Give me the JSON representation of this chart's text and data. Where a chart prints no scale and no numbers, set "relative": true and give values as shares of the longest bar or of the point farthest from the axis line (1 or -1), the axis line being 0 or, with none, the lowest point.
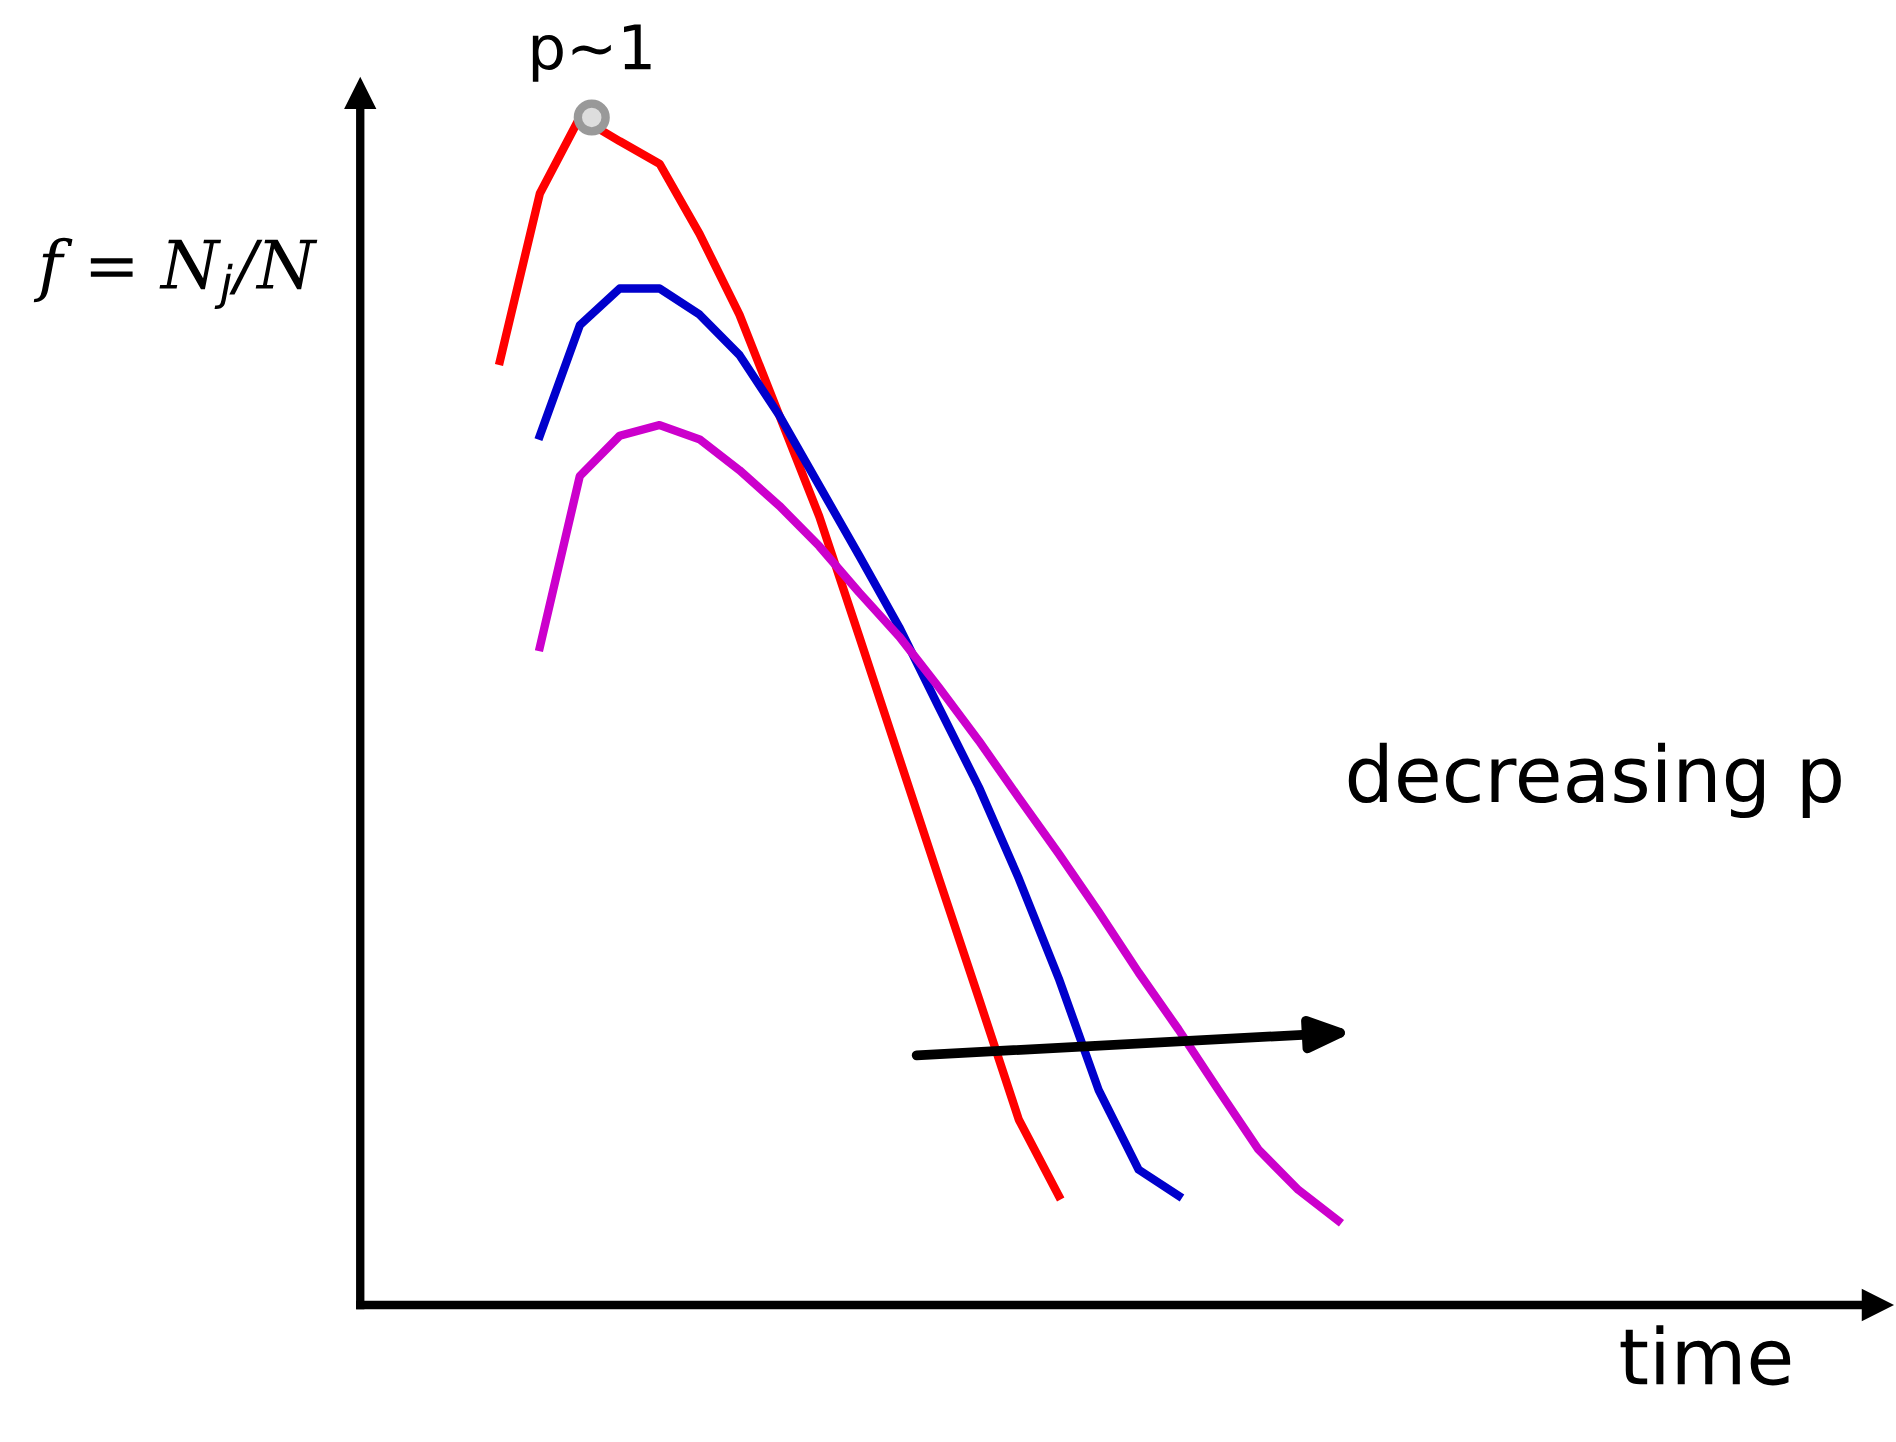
{
  "chart_data": {
    "type": "line",
    "relative": true,
    "ylabel": "f = N$_{j}$/N",
    "xlabel": "time",
    "legend": false,
    "marker": "none",
    "line_style": "solid",
    "categories": [
      null,
      null,
      null,
      null,
      null,
      null,
      null,
      null,
      null,
      null,
      null,
      null,
      null,
      null,
      null,
      null,
      null,
      null,
      null,
      null,
      null,
      null
    ],
    "series": [
      {
        "color": "#ff0000",
        "values": [
          0.795,
          0.936,
          1.0,
          0.98,
          0.961,
          0.902,
          0.834,
          0.749,
          0.664,
          0.563,
          0.461,
          0.359,
          0.258,
          0.156,
          0.092,
          null,
          null,
          null,
          null,
          null,
          null,
          null
        ]
      },
      {
        "color": "#0000cc",
        "values": [
          null,
          0.732,
          0.825,
          0.856,
          0.856,
          0.834,
          0.8,
          0.749,
          0.69,
          0.631,
          0.571,
          0.503,
          0.436,
          0.359,
          0.275,
          0.181,
          0.114,
          0.092,
          null,
          null,
          null,
          null
        ]
      },
      {
        "color": "#cc00cc",
        "values": [
          null,
          0.554,
          0.698,
          0.732,
          0.741,
          0.729,
          0.703,
          0.673,
          0.639,
          0.6,
          0.563,
          0.52,
          0.475,
          0.427,
          0.38,
          0.331,
          0.28,
          0.232,
          0.181,
          0.131,
          0.097,
          0.071
        ]
      }
    ],
    "annotations": [
      "p~1",
      "decreasing p"
    ]
  }
}
